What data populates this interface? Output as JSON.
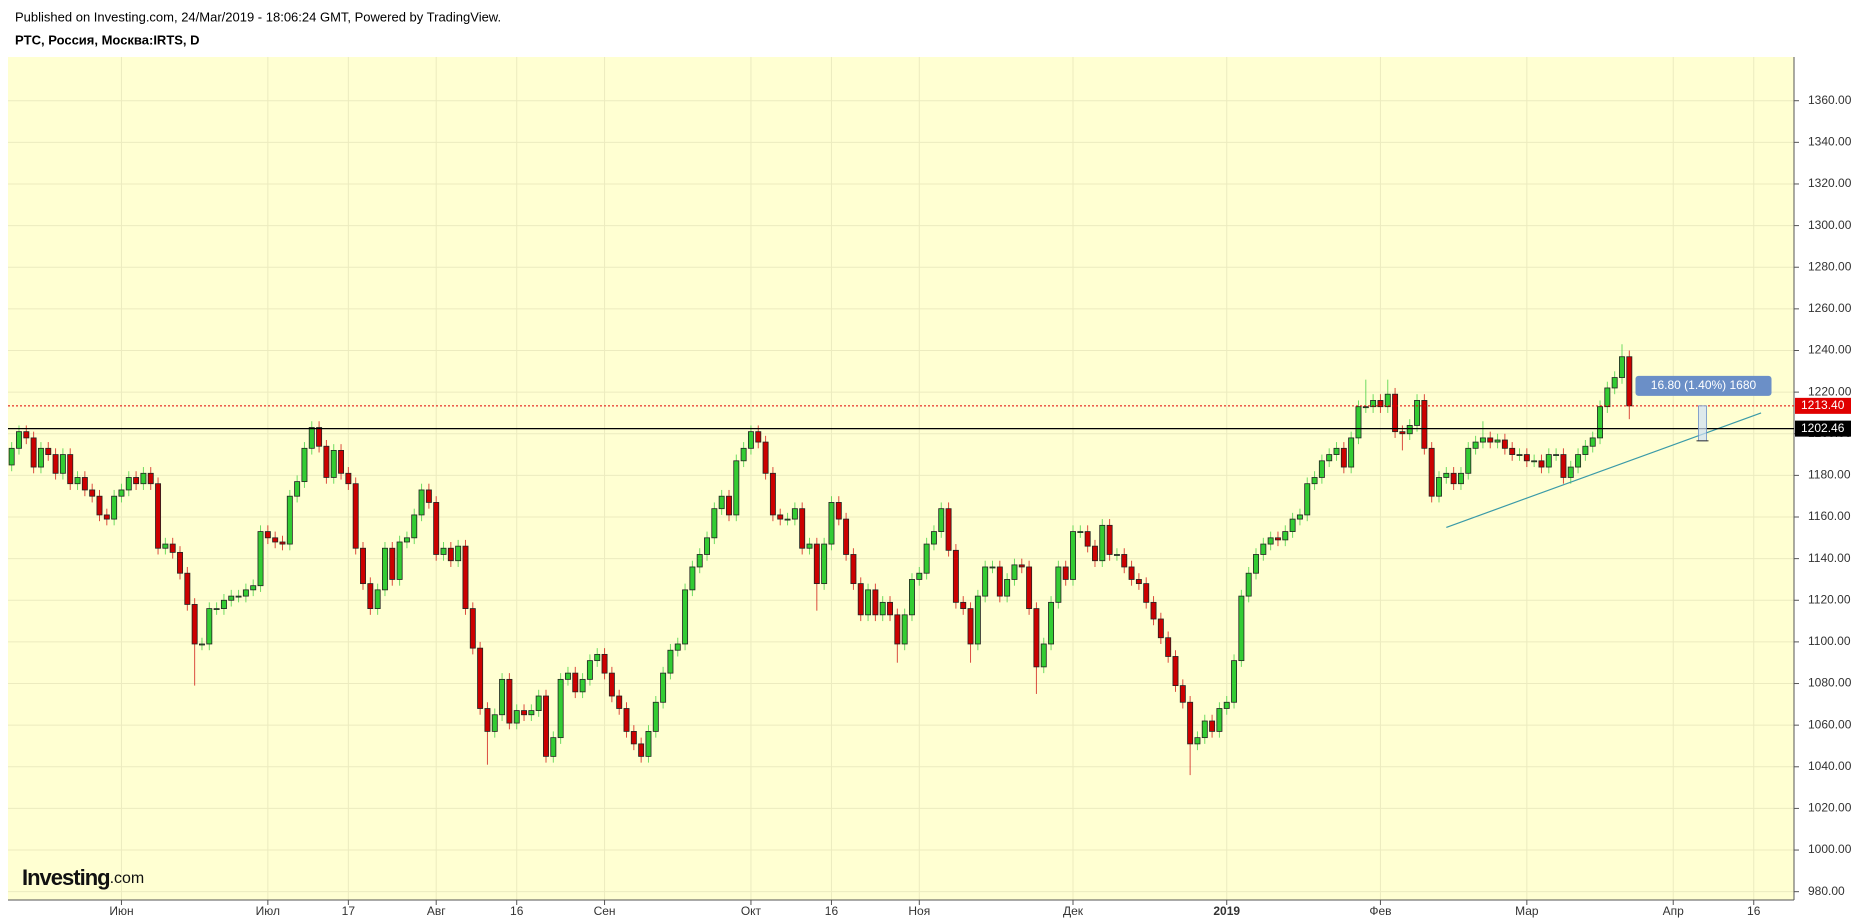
{
  "header": {
    "published": "Published on Investing.com, 24/Mar/2019 - 18:06:24 GMT, Powered by TradingView."
  },
  "logo": {
    "main": "Investing",
    "suffix": ".com"
  },
  "chart_data": {
    "type": "candlestick",
    "title": "PTC, Россия, Москва:IRTS, D",
    "background": "#ffffd2",
    "up_color": "#33cc33",
    "down_color": "#cc0000",
    "grid": true,
    "ylim": [
      976,
      1381
    ],
    "yticks": [
      {
        "value": 980,
        "label": "980.00"
      },
      {
        "value": 1000,
        "label": "1000.00"
      },
      {
        "value": 1020,
        "label": "1020.00"
      },
      {
        "value": 1040,
        "label": "1040.00"
      },
      {
        "value": 1060,
        "label": "1060.00"
      },
      {
        "value": 1080,
        "label": "1080.00"
      },
      {
        "value": 1100,
        "label": "1100.00"
      },
      {
        "value": 1120,
        "label": "1120.00"
      },
      {
        "value": 1140,
        "label": "1140.00"
      },
      {
        "value": 1160,
        "label": "1160.00"
      },
      {
        "value": 1180,
        "label": "1180.00"
      },
      {
        "value": 1200,
        "label": "1200.00"
      },
      {
        "value": 1220,
        "label": "1220.00"
      },
      {
        "value": 1240,
        "label": "1240.00"
      },
      {
        "value": 1260,
        "label": "1260.00"
      },
      {
        "value": 1280,
        "label": "1280.00"
      },
      {
        "value": 1300,
        "label": "1300.00"
      },
      {
        "value": 1320,
        "label": "1320.00"
      },
      {
        "value": 1340,
        "label": "1340.00"
      },
      {
        "value": 1360,
        "label": "1360.00"
      }
    ],
    "categories": [
      null,
      null,
      null,
      null,
      null,
      null,
      null,
      null,
      null,
      null,
      null,
      null,
      null,
      null,
      null,
      "Июн",
      null,
      null,
      null,
      null,
      null,
      null,
      null,
      null,
      null,
      null,
      null,
      null,
      null,
      null,
      null,
      null,
      null,
      null,
      null,
      "Июл",
      null,
      null,
      null,
      null,
      null,
      null,
      null,
      null,
      null,
      null,
      "17",
      null,
      null,
      null,
      null,
      null,
      null,
      null,
      null,
      null,
      null,
      null,
      "Авг",
      null,
      null,
      null,
      null,
      null,
      null,
      null,
      null,
      null,
      null,
      "16",
      null,
      null,
      null,
      null,
      null,
      null,
      null,
      null,
      null,
      null,
      null,
      "Сен",
      null,
      null,
      null,
      null,
      null,
      null,
      null,
      null,
      null,
      null,
      null,
      null,
      null,
      null,
      null,
      null,
      null,
      null,
      null,
      "Окт",
      null,
      null,
      null,
      null,
      null,
      null,
      null,
      null,
      null,
      null,
      "16",
      null,
      null,
      null,
      null,
      null,
      null,
      null,
      null,
      null,
      null,
      null,
      "Ноя",
      null,
      null,
      null,
      null,
      null,
      null,
      null,
      null,
      null,
      null,
      null,
      null,
      null,
      null,
      null,
      null,
      null,
      null,
      null,
      null,
      "Дек",
      null,
      null,
      null,
      null,
      null,
      null,
      null,
      null,
      null,
      null,
      null,
      null,
      null,
      null,
      null,
      null,
      null,
      null,
      null,
      null,
      "2019",
      null,
      null,
      null,
      null,
      null,
      null,
      null,
      null,
      null,
      null,
      null,
      null,
      null,
      null,
      null,
      null,
      null,
      null,
      null,
      null,
      "Фев",
      null,
      null,
      null,
      null,
      null,
      null,
      null,
      null,
      null,
      null,
      null,
      null,
      null,
      null,
      null,
      null,
      null,
      null,
      null,
      "Мар",
      null,
      null,
      null,
      null,
      null,
      null,
      null,
      null,
      null,
      null,
      null,
      null,
      null,
      null,
      null,
      null,
      null,
      null,
      null,
      "Апр",
      null,
      null,
      null,
      null,
      null,
      null,
      null,
      null,
      null,
      null,
      "16",
      null,
      null,
      null,
      null,
      null
    ],
    "open": [
      1185,
      1193,
      1201,
      1198,
      1184,
      1193,
      1190,
      1181,
      1190,
      1176,
      1179,
      1173,
      1170,
      1161,
      1159,
      1170,
      1173,
      1179,
      1176,
      1181,
      1176,
      1145,
      1147,
      1143,
      1133,
      1118,
      1099,
      1099,
      1116,
      1116,
      1120,
      1122,
      1122,
      1125,
      1127,
      1153,
      1150,
      1148,
      1147,
      1170,
      1177,
      1193,
      1203,
      1194,
      1179,
      1192,
      1181,
      1176,
      1145,
      1128,
      1116,
      1125,
      1145,
      1130,
      1148,
      1150,
      1161,
      1173,
      1167,
      1142,
      1145,
      1139,
      1146,
      1116,
      1097,
      1068,
      1057,
      1065,
      1082,
      1061,
      1067,
      1065,
      1067,
      1074,
      1045,
      1054,
      1082,
      1085,
      1076,
      1082,
      1091,
      1094,
      1085,
      1074,
      1068,
      1057,
      1051,
      1045,
      1057,
      1071,
      1085,
      1096,
      1099,
      1125,
      1136,
      1142,
      1150,
      1164,
      1170,
      1161,
      1187,
      1193,
      1201,
      1196,
      1181,
      1161,
      1159,
      1159,
      1164,
      1145,
      1147,
      1128,
      1147,
      1167,
      1159,
      1142,
      1128,
      1113,
      1125,
      1113,
      1119,
      1113,
      1099,
      1113,
      1130,
      1133,
      1147,
      1153,
      1164,
      1144,
      1119,
      1116,
      1099,
      1122,
      1136,
      1136,
      1122,
      1130,
      1137,
      1136,
      1116,
      1088,
      1099,
      1119,
      1136,
      1130,
      1153,
      1153,
      1146,
      1139,
      1156,
      1142,
      1142,
      1136,
      1130,
      1128,
      1119,
      1111,
      1102,
      1093,
      1079,
      1071,
      1051,
      1054,
      1062,
      1057,
      1068,
      1071,
      1091,
      1122,
      1133,
      1142,
      1147,
      1150,
      1149,
      1153,
      1159,
      1161,
      1176,
      1179,
      1187,
      1190,
      1193,
      1184,
      1198,
      1213,
      1213,
      1216,
      1213,
      1219,
      1201,
      1200,
      1204,
      1216,
      1193,
      1170,
      1179,
      1181,
      1176,
      1181,
      1193,
      1196,
      1198,
      1196,
      1197,
      1193,
      1190,
      1190,
      1187,
      1187,
      1184,
      1190,
      1190,
      1179,
      1184,
      1190,
      1194,
      1198,
      1213,
      1222,
      1227,
      1237,
      null,
      null,
      null,
      null,
      null,
      null,
      null,
      null,
      null,
      null,
      null,
      null,
      null,
      null,
      null,
      null,
      null,
      null,
      null,
      null,
      null,
      null
    ],
    "high": [
      1196,
      1204,
      1204,
      1201,
      1196,
      1196,
      1193,
      1193,
      1193,
      1182,
      1182,
      1176,
      1173,
      1164,
      1173,
      1176,
      1182,
      1182,
      1184,
      1184,
      1179,
      1150,
      1150,
      1146,
      1136,
      1121,
      1102,
      1119,
      1119,
      1123,
      1125,
      1125,
      1128,
      1130,
      1156,
      1156,
      1153,
      1151,
      1173,
      1180,
      1196,
      1206,
      1206,
      1197,
      1195,
      1195,
      1184,
      1179,
      1148,
      1131,
      1128,
      1148,
      1148,
      1151,
      1153,
      1164,
      1176,
      1176,
      1170,
      1148,
      1148,
      1149,
      1149,
      1119,
      1100,
      1071,
      1068,
      1085,
      1085,
      1070,
      1070,
      1070,
      1077,
      1077,
      1057,
      1085,
      1088,
      1088,
      1085,
      1094,
      1097,
      1097,
      1088,
      1077,
      1071,
      1060,
      1054,
      1060,
      1074,
      1088,
      1099,
      1102,
      1128,
      1139,
      1145,
      1153,
      1167,
      1173,
      1173,
      1190,
      1196,
      1204,
      1204,
      1199,
      1184,
      1164,
      1162,
      1167,
      1167,
      1150,
      1150,
      1150,
      1170,
      1170,
      1162,
      1145,
      1131,
      1128,
      1128,
      1122,
      1122,
      1116,
      1116,
      1133,
      1136,
      1150,
      1156,
      1167,
      1167,
      1147,
      1122,
      1119,
      1125,
      1139,
      1139,
      1139,
      1133,
      1140,
      1140,
      1139,
      1119,
      1102,
      1122,
      1139,
      1139,
      1156,
      1156,
      1156,
      1149,
      1159,
      1159,
      1145,
      1145,
      1139,
      1133,
      1131,
      1122,
      1114,
      1105,
      1096,
      1082,
      1074,
      1057,
      1065,
      1065,
      1071,
      1074,
      1094,
      1125,
      1136,
      1145,
      1150,
      1153,
      1153,
      1156,
      1162,
      1164,
      1179,
      1182,
      1190,
      1193,
      1196,
      1196,
      1201,
      1216,
      1226,
      1219,
      1219,
      1226,
      1222,
      1204,
      1207,
      1219,
      1219,
      1196,
      1182,
      1184,
      1184,
      1184,
      1196,
      1199,
      1206,
      1201,
      1200,
      1200,
      1196,
      1193,
      1193,
      1190,
      1190,
      1193,
      1193,
      1193,
      1187,
      1193,
      1197,
      1201,
      1216,
      1225,
      1230,
      1243,
      1240,
      null,
      null,
      null,
      null,
      null,
      null,
      null,
      null,
      null,
      null,
      null,
      null,
      null,
      null,
      null,
      null,
      null,
      null,
      null,
      null,
      null,
      null
    ],
    "low": [
      1182,
      1190,
      1195,
      1181,
      1181,
      1187,
      1178,
      1178,
      1173,
      1173,
      1170,
      1167,
      1158,
      1156,
      1156,
      1167,
      1170,
      1173,
      1173,
      1173,
      1142,
      1142,
      1140,
      1130,
      1115,
      1079,
      1096,
      1096,
      1113,
      1113,
      1117,
      1119,
      1119,
      1122,
      1124,
      1147,
      1145,
      1144,
      1144,
      1167,
      1174,
      1190,
      1191,
      1176,
      1176,
      1178,
      1173,
      1142,
      1125,
      1113,
      1113,
      1122,
      1127,
      1127,
      1145,
      1147,
      1158,
      1164,
      1139,
      1139,
      1136,
      1136,
      1113,
      1094,
      1065,
      1041,
      1054,
      1062,
      1058,
      1058,
      1062,
      1062,
      1064,
      1042,
      1042,
      1051,
      1079,
      1073,
      1073,
      1079,
      1088,
      1082,
      1071,
      1065,
      1054,
      1048,
      1042,
      1042,
      1054,
      1068,
      1082,
      1093,
      1096,
      1122,
      1133,
      1139,
      1147,
      1161,
      1158,
      1158,
      1184,
      1190,
      1193,
      1178,
      1158,
      1156,
      1156,
      1156,
      1142,
      1142,
      1115,
      1125,
      1144,
      1156,
      1139,
      1125,
      1110,
      1110,
      1110,
      1110,
      1110,
      1090,
      1096,
      1110,
      1127,
      1130,
      1144,
      1150,
      1141,
      1116,
      1113,
      1090,
      1096,
      1119,
      1133,
      1119,
      1119,
      1127,
      1133,
      1113,
      1075,
      1085,
      1096,
      1116,
      1127,
      1127,
      1150,
      1143,
      1136,
      1136,
      1139,
      1139,
      1133,
      1127,
      1125,
      1116,
      1108,
      1099,
      1090,
      1076,
      1068,
      1036,
      1048,
      1051,
      1054,
      1054,
      1065,
      1068,
      1088,
      1119,
      1130,
      1139,
      1144,
      1146,
      1146,
      1150,
      1156,
      1158,
      1173,
      1176,
      1184,
      1187,
      1181,
      1181,
      1195,
      1210,
      1210,
      1210,
      1210,
      1198,
      1192,
      1197,
      1201,
      1190,
      1167,
      1167,
      1176,
      1173,
      1173,
      1178,
      1190,
      1193,
      1193,
      1193,
      1190,
      1187,
      1187,
      1184,
      1184,
      1181,
      1181,
      1187,
      1176,
      1176,
      1181,
      1187,
      1191,
      1195,
      1210,
      1219,
      1224,
      1207,
      null,
      null,
      null,
      null,
      null,
      null,
      null,
      null,
      null,
      null,
      null,
      null,
      null,
      null,
      null,
      null,
      null,
      null,
      null,
      null,
      null,
      null
    ],
    "close": [
      1193,
      1201,
      1198,
      1184,
      1193,
      1190,
      1181,
      1190,
      1176,
      1179,
      1173,
      1170,
      1161,
      1159,
      1170,
      1173,
      1179,
      1176,
      1181,
      1176,
      1145,
      1147,
      1143,
      1133,
      1118,
      1099,
      1099,
      1116,
      1116,
      1120,
      1122,
      1122,
      1125,
      1127,
      1153,
      1150,
      1148,
      1147,
      1170,
      1177,
      1193,
      1203,
      1194,
      1179,
      1192,
      1181,
      1176,
      1145,
      1128,
      1116,
      1125,
      1145,
      1130,
      1148,
      1150,
      1161,
      1173,
      1167,
      1142,
      1145,
      1139,
      1146,
      1116,
      1097,
      1068,
      1057,
      1065,
      1082,
      1061,
      1067,
      1065,
      1067,
      1074,
      1045,
      1054,
      1082,
      1085,
      1076,
      1082,
      1091,
      1094,
      1085,
      1074,
      1068,
      1057,
      1051,
      1045,
      1057,
      1071,
      1085,
      1096,
      1099,
      1125,
      1136,
      1142,
      1150,
      1164,
      1170,
      1161,
      1187,
      1193,
      1201,
      1196,
      1181,
      1161,
      1159,
      1159,
      1164,
      1145,
      1147,
      1128,
      1147,
      1167,
      1159,
      1142,
      1128,
      1113,
      1125,
      1113,
      1119,
      1113,
      1099,
      1113,
      1130,
      1133,
      1147,
      1153,
      1164,
      1144,
      1119,
      1116,
      1099,
      1122,
      1136,
      1136,
      1122,
      1130,
      1137,
      1136,
      1116,
      1088,
      1099,
      1119,
      1136,
      1130,
      1153,
      1153,
      1146,
      1139,
      1156,
      1142,
      1142,
      1136,
      1130,
      1128,
      1119,
      1111,
      1102,
      1093,
      1079,
      1071,
      1051,
      1054,
      1062,
      1057,
      1068,
      1071,
      1091,
      1122,
      1133,
      1142,
      1147,
      1150,
      1149,
      1153,
      1159,
      1161,
      1176,
      1179,
      1187,
      1190,
      1193,
      1184,
      1198,
      1213,
      1213,
      1216,
      1213,
      1219,
      1201,
      1200,
      1204,
      1216,
      1193,
      1170,
      1179,
      1181,
      1176,
      1181,
      1193,
      1196,
      1198,
      1196,
      1197,
      1193,
      1190,
      1190,
      1187,
      1187,
      1184,
      1190,
      1190,
      1179,
      1184,
      1190,
      1194,
      1198,
      1213,
      1222,
      1227,
      1237,
      1213.4,
      null,
      null,
      null,
      null,
      null,
      null,
      null,
      null,
      null,
      null,
      null,
      null,
      null,
      null,
      null,
      null,
      null,
      null,
      null,
      null,
      null,
      null
    ],
    "hlines": [
      {
        "value": 1213.4,
        "label": "1213.40",
        "color": "#e00000",
        "dashed": true
      },
      {
        "value": 1202.46,
        "label": "1202.46",
        "color": "#000000",
        "dashed": false
      }
    ],
    "trend_line": {
      "start": [
        196,
        1155
      ],
      "end": [
        239,
        1210
      ],
      "color": "#3a9aa8"
    },
    "measure": {
      "label": "16.80 (1.40%) 1680",
      "x": 231,
      "from": 1196.6,
      "to": 1213.4,
      "color": "#6b8fc7"
    }
  }
}
